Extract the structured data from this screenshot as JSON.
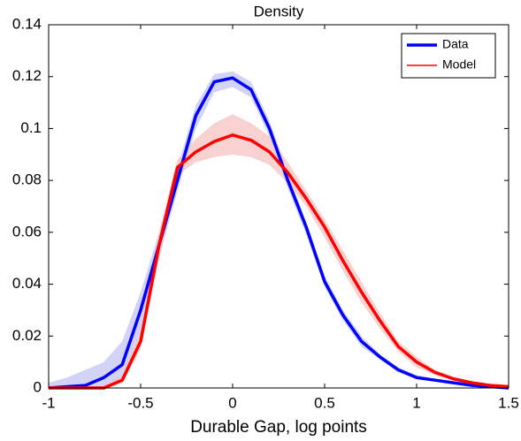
{
  "chart_data": {
    "type": "line",
    "title": "Density",
    "x_label": "Durable Gap, log points",
    "x": [
      -1,
      -0.9,
      -0.8,
      -0.7,
      -0.6,
      -0.5,
      -0.4,
      -0.3,
      -0.2,
      -0.1,
      0,
      0.1,
      0.2,
      0.3,
      0.4,
      0.5,
      0.6,
      0.7,
      0.8,
      0.9,
      1,
      1.1,
      1.2,
      1.3,
      1.4,
      1.5
    ],
    "series": [
      {
        "name": "Data",
        "color": "#0000ff",
        "band_color": "#c4c4f4",
        "values": [
          0,
          0.0005,
          0.001,
          0.004,
          0.009,
          0.03,
          0.055,
          0.08,
          0.105,
          0.118,
          0.1195,
          0.115,
          0.1,
          0.08,
          0.062,
          0.041,
          0.028,
          0.018,
          0.012,
          0.007,
          0.004,
          0.003,
          0.002,
          0.001,
          0.0005,
          0
        ],
        "band_upper": [
          0.002,
          0.004,
          0.007,
          0.01,
          0.018,
          0.037,
          0.06,
          0.085,
          0.109,
          0.121,
          0.122,
          0.118,
          0.103,
          0.083,
          0.064,
          0.043,
          0.03,
          0.02,
          0.013,
          0.008,
          0.005,
          0.0035,
          0.0025,
          0.0015,
          0.001,
          0.0005
        ],
        "band_lower": [
          0,
          0,
          0,
          0,
          0.003,
          0.022,
          0.05,
          0.076,
          0.1,
          0.114,
          0.116,
          0.112,
          0.097,
          0.077,
          0.059,
          0.039,
          0.026,
          0.016,
          0.011,
          0.006,
          0.0035,
          0.0025,
          0.0015,
          0.0005,
          0,
          0
        ]
      },
      {
        "name": "Model",
        "color": "#ff0000",
        "band_color": "#f6c2c2",
        "values": [
          0,
          0,
          0,
          0,
          0.003,
          0.018,
          0.055,
          0.085,
          0.091,
          0.095,
          0.0975,
          0.0955,
          0.091,
          0.083,
          0.073,
          0.062,
          0.049,
          0.037,
          0.026,
          0.016,
          0.01,
          0.006,
          0.0035,
          0.002,
          0.001,
          0.0005
        ],
        "band_upper": [
          0,
          0,
          0,
          0.001,
          0.005,
          0.022,
          0.06,
          0.088,
          0.096,
          0.102,
          0.1055,
          0.102,
          0.097,
          0.087,
          0.076,
          0.065,
          0.053,
          0.041,
          0.029,
          0.018,
          0.012,
          0.007,
          0.0045,
          0.0025,
          0.0015,
          0.001
        ],
        "band_lower": [
          0,
          0,
          0,
          0,
          0.002,
          0.015,
          0.05,
          0.082,
          0.087,
          0.089,
          0.09,
          0.089,
          0.086,
          0.079,
          0.07,
          0.058,
          0.045,
          0.033,
          0.023,
          0.014,
          0.008,
          0.005,
          0.003,
          0.0015,
          0.0005,
          0
        ]
      }
    ],
    "xlim": [
      -1,
      1.5
    ],
    "xticks": [
      -1,
      -0.5,
      0,
      0.5,
      1,
      1.5
    ],
    "ylim": [
      0,
      0.14
    ],
    "yticks": [
      0,
      0.02,
      0.04,
      0.06,
      0.08,
      0.1,
      0.12,
      0.14
    ],
    "legend": "upper right"
  }
}
